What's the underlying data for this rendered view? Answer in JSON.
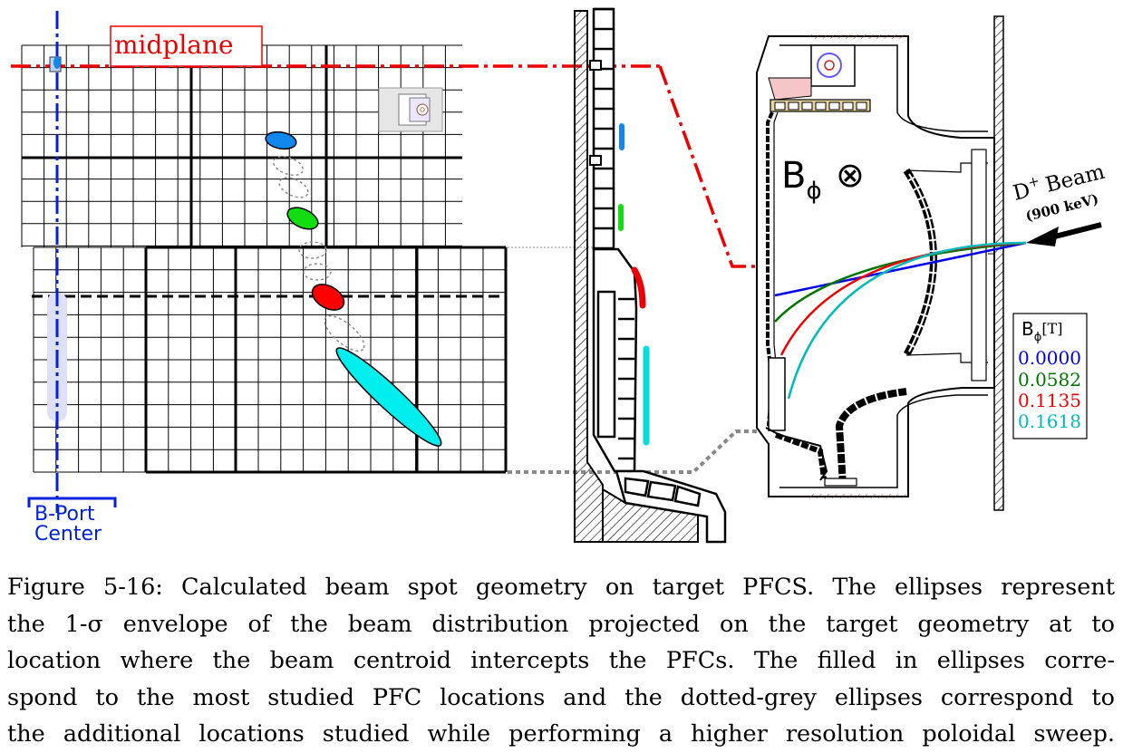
{
  "figure": {
    "midplane_label": "midplane",
    "port_label_line1": "B-Port",
    "port_label_line2": "Center",
    "field_symbol": "B",
    "field_subscript": "ϕ",
    "field_direction_symbol": "⊗",
    "beam_label_species": "D",
    "beam_label_charge": "+",
    "beam_label_word": "Beam",
    "beam_energy": "(900 keV)",
    "legend": {
      "title_symbol": "B",
      "title_subscript": "ϕ",
      "title_unit": "[T]",
      "entries": [
        {
          "value": "0.0000",
          "color": "#0000ee"
        },
        {
          "value": "0.0582",
          "color": "#007700"
        },
        {
          "value": "0.1135",
          "color": "#ee0000"
        },
        {
          "value": "0.1618",
          "color": "#00bbbb"
        }
      ]
    },
    "colors": {
      "midplane": "#ee0000",
      "port": "#0022dd",
      "spot_blue": "#1188ee",
      "spot_green": "#11dd11",
      "spot_red": "#ff0000",
      "spot_cyan": "#00eeee",
      "guide_grey": "#888888"
    }
  },
  "caption": {
    "lines": [
      "Figure 5-16: Calculated beam spot geometry on target PFCS. The ellipses represent",
      "the 1-σ envelope of the beam distribution projected on the target geometry at to",
      "location where the beam centroid intercepts the PFCs.  The filled in ellipses corre-",
      "spond to the most studied PFC locations and the dotted-grey ellipses correspond to",
      "the additional locations studied while performing a higher resolution poloidal sweep."
    ]
  }
}
